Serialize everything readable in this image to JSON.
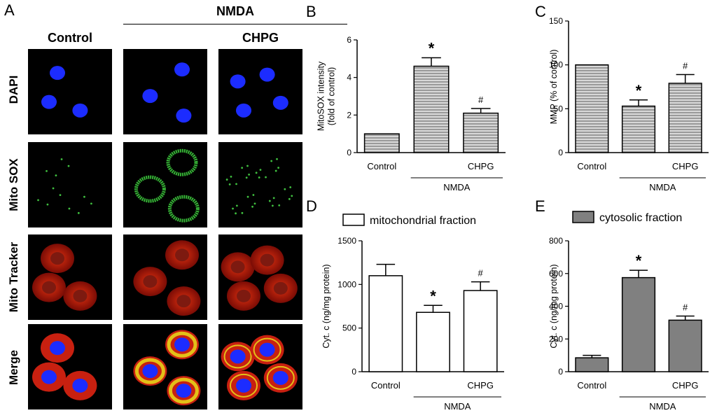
{
  "panelA": {
    "letter": "A",
    "group_label": "NMDA",
    "columns": [
      "Control",
      "",
      "CHPG"
    ],
    "rows": [
      "DAPI",
      "Mito SOX",
      "Mito Tracker",
      "Merge"
    ]
  },
  "chart_data": [
    {
      "panel": "B",
      "type": "bar",
      "categories": [
        "Control",
        "",
        "CHPG"
      ],
      "values": [
        1.0,
        4.6,
        2.1
      ],
      "errors": [
        0,
        0.45,
        0.25
      ],
      "significance": [
        "",
        "*",
        "#"
      ],
      "ylabel_lines": [
        "MitoSOX intensity",
        "(fold of control)"
      ],
      "ylim": [
        0,
        6
      ],
      "yticks": [
        0,
        2,
        4,
        6
      ],
      "group_label": "NMDA",
      "fill": "hatched-gray"
    },
    {
      "panel": "C",
      "type": "bar",
      "categories": [
        "Control",
        "",
        "CHPG"
      ],
      "values": [
        100,
        53,
        79
      ],
      "errors": [
        0,
        7,
        10
      ],
      "significance": [
        "",
        "*",
        "#"
      ],
      "ylabel_lines": [
        "MMP (% of control)"
      ],
      "ylim": [
        0,
        150
      ],
      "yticks": [
        0,
        50,
        100,
        150
      ],
      "group_label": "NMDA",
      "fill": "hatched-gray"
    },
    {
      "panel": "D",
      "type": "bar",
      "legend": "mitochondrial fraction",
      "categories": [
        "Control",
        "",
        "CHPG"
      ],
      "values": [
        1100,
        680,
        930
      ],
      "errors": [
        130,
        80,
        100
      ],
      "significance": [
        "",
        "*",
        "#"
      ],
      "ylabel_lines": [
        "Cyt. c (ng/mg protein)"
      ],
      "ylim": [
        0,
        1500
      ],
      "yticks": [
        0,
        500,
        1000,
        1500
      ],
      "group_label": "NMDA",
      "fill": "#ffffff"
    },
    {
      "panel": "E",
      "type": "bar",
      "legend": "cytosolic fraction",
      "categories": [
        "Control",
        "",
        "CHPG"
      ],
      "values": [
        85,
        575,
        315
      ],
      "errors": [
        15,
        45,
        25
      ],
      "significance": [
        "",
        "*",
        "#"
      ],
      "ylabel_lines": [
        "Cyt. c (ng/mg protein)"
      ],
      "ylim": [
        0,
        800
      ],
      "yticks": [
        0,
        200,
        400,
        600,
        800
      ],
      "group_label": "NMDA",
      "fill": "#808080"
    }
  ]
}
